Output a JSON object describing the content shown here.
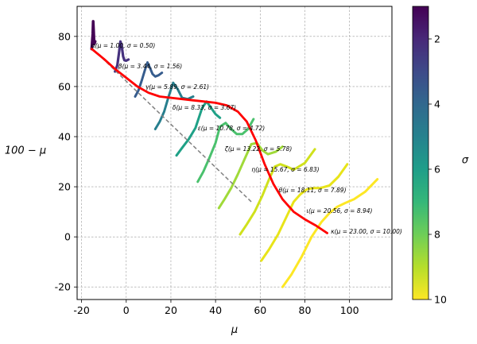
{
  "chart_data": {
    "type": "line",
    "xlabel": "μ",
    "ylabel": "100 − μ",
    "xlim": [
      -22,
      119
    ],
    "ylim": [
      -25,
      92
    ],
    "xticks": [
      -20,
      0,
      20,
      40,
      60,
      80,
      100
    ],
    "yticks": [
      -20,
      0,
      20,
      40,
      60,
      80
    ],
    "grid": true,
    "grid_style": "dashed",
    "colorbar": {
      "label": "σ",
      "range": [
        1,
        10
      ],
      "ticks": [
        2,
        4,
        6,
        8,
        10
      ],
      "inverted": true,
      "colormap": "viridis",
      "position": "right"
    },
    "series": [
      {
        "label": "α(μ = 1.00, σ = 0.50)",
        "mu": 1.0,
        "sigma": 0.5,
        "color": "#440154"
      },
      {
        "label": "β(μ = 3.44, σ = 1.56)",
        "mu": 3.44,
        "sigma": 1.56,
        "color": "#46327e"
      },
      {
        "label": "γ(μ = 5.89, σ = 2.61)",
        "mu": 5.89,
        "sigma": 2.61,
        "color": "#365c8d"
      },
      {
        "label": "δ(μ = 8.33, σ = 3.67)",
        "mu": 8.33,
        "sigma": 3.67,
        "color": "#277f8e"
      },
      {
        "label": "ε(μ = 10.78, σ = 4.72)",
        "mu": 10.78,
        "sigma": 4.72,
        "color": "#1fa187"
      },
      {
        "label": "ζ(μ = 13.22, σ = 5.78)",
        "mu": 13.22,
        "sigma": 5.78,
        "color": "#4ac16d"
      },
      {
        "label": "η(μ = 15.67, σ = 6.83)",
        "mu": 15.67,
        "sigma": 6.83,
        "color": "#a0da39"
      },
      {
        "label": "θ(μ = 18.11, σ = 7.89)",
        "mu": 18.11,
        "sigma": 7.89,
        "color": "#d0e11c"
      },
      {
        "label": "ι(μ = 20.56, σ = 8.94)",
        "mu": 20.56,
        "sigma": 8.94,
        "color": "#e8e419"
      },
      {
        "label": "κ(μ = 23.00, σ = 10.00)",
        "mu": 23.0,
        "sigma": 10.0,
        "color": "#fde725"
      }
    ],
    "curves": [
      {
        "name": "α",
        "color": "#440154",
        "width": 3.5,
        "x": [
          -15.5,
          -15.3,
          -15.0,
          -14.8,
          -14.6,
          -14.4,
          -14.3,
          -14.1,
          -13.9
        ],
        "y": [
          75.0,
          77.0,
          81.0,
          86.0,
          82.0,
          78.0,
          77.0,
          77.5,
          78.0
        ]
      },
      {
        "name": "β",
        "color": "#46327e",
        "width": 3.2,
        "x": [
          -5.0,
          -4.0,
          -3.3,
          -2.6,
          -2.0,
          -1.4,
          -0.8,
          0.0,
          1.0
        ],
        "y": [
          66.0,
          68.5,
          73.0,
          78.0,
          76.0,
          72.0,
          70.5,
          70.3,
          70.8
        ]
      },
      {
        "name": "γ",
        "color": "#365c8d",
        "width": 3.0,
        "x": [
          4.0,
          5.5,
          7.0,
          8.5,
          9.5,
          10.6,
          11.8,
          13.0,
          14.5,
          16.0
        ],
        "y": [
          56.0,
          58.5,
          62.5,
          67.0,
          69.6,
          67.5,
          65.0,
          64.0,
          64.5,
          65.5
        ]
      },
      {
        "name": "δ",
        "color": "#277f8e",
        "width": 3.0,
        "x": [
          13.0,
          15.0,
          17.0,
          19.0,
          21.0,
          23.0,
          25.0,
          27.5,
          30.0
        ],
        "y": [
          43.0,
          46.0,
          50.0,
          56.0,
          61.5,
          59.0,
          55.5,
          55.0,
          56.0
        ]
      },
      {
        "name": "ε",
        "color": "#1fa187",
        "width": 3.0,
        "x": [
          22.5,
          25.0,
          28.0,
          31.0,
          34.0,
          36.0,
          38.0,
          40.0,
          42.0
        ],
        "y": [
          32.5,
          35.5,
          39.0,
          43.5,
          51.5,
          54.0,
          51.5,
          49.0,
          47.5
        ]
      },
      {
        "name": "ζ",
        "color": "#4ac16d",
        "width": 3.0,
        "x": [
          32.0,
          34.5,
          37.0,
          40.0,
          42.0,
          44.5,
          47.0,
          49.5,
          52.0,
          54.5,
          57.0
        ],
        "y": [
          22.0,
          26.0,
          31.0,
          37.5,
          44.0,
          45.5,
          43.0,
          41.0,
          41.0,
          43.0,
          47.0
        ]
      },
      {
        "name": "η",
        "color": "#a0da39",
        "width": 3.0,
        "x": [
          41.5,
          44.0,
          47.0,
          50.0,
          53.0,
          56.0,
          58.5,
          61.0,
          63.5,
          67.0,
          70.0
        ],
        "y": [
          11.5,
          15.0,
          19.5,
          25.0,
          31.0,
          37.0,
          37.5,
          34.5,
          33.0,
          34.0,
          36.0
        ]
      },
      {
        "name": "θ",
        "color": "#d0e11c",
        "width": 3.0,
        "x": [
          51.0,
          54.0,
          57.5,
          61.0,
          64.0,
          66.5,
          69.0,
          72.0,
          75.0,
          80.0,
          84.5
        ],
        "y": [
          1.0,
          5.0,
          10.0,
          16.5,
          23.0,
          28.0,
          29.0,
          28.0,
          26.8,
          29.5,
          35.0
        ]
      },
      {
        "name": "ι",
        "color": "#e8e419",
        "width": 3.0,
        "x": [
          60.5,
          64.0,
          68.0,
          71.5,
          75.0,
          78.0,
          81.0,
          84.0,
          87.0,
          91.0,
          95.0,
          99.0
        ],
        "y": [
          -9.5,
          -5.0,
          1.0,
          7.5,
          14.0,
          17.0,
          19.0,
          19.5,
          19.5,
          20.5,
          24.0,
          29.0
        ]
      },
      {
        "name": "κ",
        "color": "#fde725",
        "width": 3.0,
        "x": [
          70.0,
          74.0,
          78.5,
          83.0,
          87.5,
          91.0,
          94.5,
          98.0,
          102.0,
          107.0,
          112.5
        ],
        "y": [
          -20.0,
          -15.0,
          -8.0,
          0.0,
          6.0,
          9.5,
          12.0,
          13.5,
          15.0,
          18.0,
          23.0
        ]
      },
      {
        "name": "trend",
        "color": "#ff0000",
        "width": 2.8,
        "x": [
          -15.5,
          -10.0,
          -5.0,
          0.0,
          5.0,
          10.0,
          15.0,
          20.0,
          25.0,
          30.0,
          35.0,
          40.0,
          45.0,
          50.0,
          54.0,
          58.0,
          62.0,
          66.0,
          70.0,
          75.0,
          80.0,
          85.0,
          90.0
        ],
        "y": [
          75.0,
          71.0,
          67.0,
          63.5,
          60.0,
          57.5,
          56.0,
          55.5,
          55.0,
          54.5,
          54.0,
          53.5,
          52.5,
          50.0,
          46.0,
          38.5,
          29.0,
          21.0,
          15.0,
          10.0,
          7.0,
          4.5,
          1.5
        ]
      }
    ],
    "reference_line": {
      "x": [
        -15.0,
        56.0
      ],
      "y": [
        75.0,
        14.0
      ],
      "color": "#808080",
      "style": "dashed"
    }
  }
}
